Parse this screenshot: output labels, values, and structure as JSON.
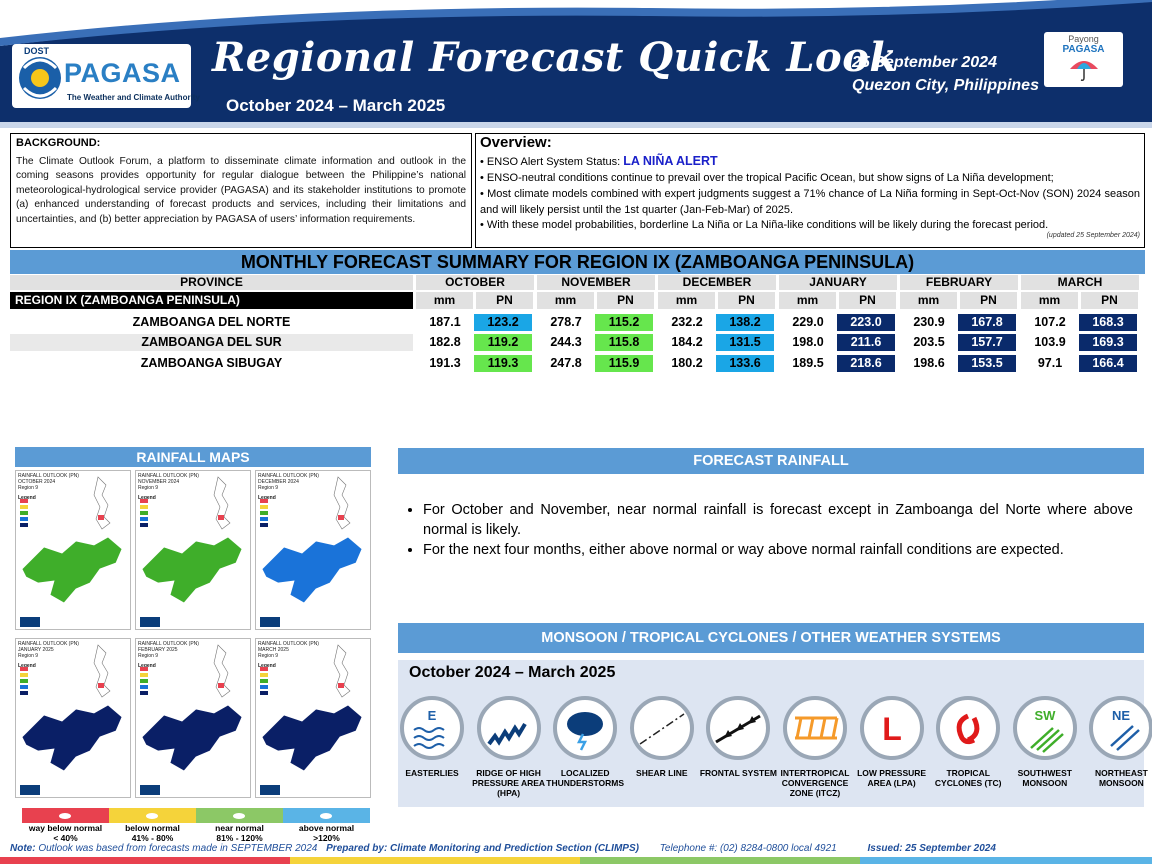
{
  "header": {
    "logo_dost": "DOST",
    "logo_name": "PAGASA",
    "logo_tagline": "The Weather and Climate Authority",
    "title": "Regional Forecast Quick Look",
    "period": "October 2024 – March 2025",
    "date": "25 September 2024",
    "place": "Quezon City, Philippines",
    "payong_top": "Payong",
    "payong_name": "PAGASA"
  },
  "background": {
    "title": "BACKGROUND:",
    "text": "The Climate Outlook Forum, a platform to disseminate climate information and outlook in the coming seasons provides opportunity for regular dialogue between the Philippine’s national meteorological-hydrological service provider (PAGASA) and its stakeholder institutions to promote (a) enhanced understanding of forecast products and services, including their limitations and uncertainties, and (b) better appreciation by PAGASA of users’ information requirements."
  },
  "overview": {
    "title": "Overview:",
    "status_label": "• ENSO Alert System Status: ",
    "status_value": "LA NIÑA ALERT",
    "line1": "• ENSO-neutral conditions continue to prevail over the tropical Pacific Ocean, but show signs of La Niña development;",
    "line2": "• Most climate models combined with expert judgments suggest a 71% chance of La Niña forming in Sept-Oct-Nov (SON) 2024 season and will likely persist until the 1st quarter (Jan-Feb-Mar) of 2025.",
    "line3": "• With these model probabilities, borderline La Niña or La Niña-like conditions will be likely during the forecast period.",
    "updated": "(updated 25 September 2024)"
  },
  "table": {
    "title": "MONTHLY FORECAST SUMMARY FOR REGION IX (ZAMBOANGA PENINSULA)",
    "province_header": "PROVINCE",
    "region_label": "REGION IX (ZAMBOANGA PENINSULA)",
    "months": [
      "OCTOBER",
      "NOVEMBER",
      "DECEMBER",
      "JANUARY",
      "FEBRUARY",
      "MARCH"
    ],
    "sub": {
      "mm": "mm",
      "pn": "PN"
    },
    "rows": [
      {
        "name": "ZAMBOANGA DEL NORTE",
        "values": [
          "187.1",
          "123.2",
          "278.7",
          "115.2",
          "232.2",
          "138.2",
          "229.0",
          "223.0",
          "230.9",
          "167.8",
          "107.2",
          "168.3"
        ]
      },
      {
        "name": "ZAMBOANGA DEL SUR",
        "values": [
          "182.8",
          "119.2",
          "244.3",
          "115.8",
          "184.2",
          "131.5",
          "198.0",
          "211.6",
          "203.5",
          "157.7",
          "103.9",
          "169.3"
        ]
      },
      {
        "name": "ZAMBOANGA SIBUGAY",
        "values": [
          "191.3",
          "119.3",
          "247.8",
          "115.9",
          "180.2",
          "133.6",
          "189.5",
          "218.6",
          "198.6",
          "153.5",
          "97.1",
          "166.4"
        ]
      }
    ],
    "colors": {
      "near_normal": "#66e64d",
      "above_normal": "#1aa6e6",
      "way_above": "#0a2a6b"
    }
  },
  "maps": {
    "title": "RAINFALL MAPS",
    "items": [
      {
        "title": "RAINFALL OUTLOOK (PN)",
        "month": "OCTOBER 2024",
        "region": "Region 9",
        "fill": "#3fae2a"
      },
      {
        "title": "RAINFALL OUTLOOK (PN)",
        "month": "NOVEMBER 2024",
        "region": "Region 9",
        "fill": "#3fae2a"
      },
      {
        "title": "RAINFALL OUTLOOK (PN)",
        "month": "DECEMBER 2024",
        "region": "Region 9",
        "fill": "#1a73d9"
      },
      {
        "title": "RAINFALL OUTLOOK (PN)",
        "month": "JANUARY 2025",
        "region": "Region 9",
        "fill": "#0a1f66"
      },
      {
        "title": "RAINFALL OUTLOOK (PN)",
        "month": "FEBRUARY 2025",
        "region": "Region 9",
        "fill": "#0a1f66"
      },
      {
        "title": "RAINFALL OUTLOOK (PN)",
        "month": "MARCH 2025",
        "region": "Region 9",
        "fill": "#0a1f66"
      }
    ],
    "legend_title": "Legend"
  },
  "legend": [
    {
      "label": "way below normal",
      "range": "< 40%",
      "color": "#e8414f"
    },
    {
      "label": "below normal",
      "range": "41% - 80%",
      "color": "#f5d33a"
    },
    {
      "label": "near normal",
      "range": "81% - 120%",
      "color": "#8cc866"
    },
    {
      "label": "above normal",
      "range": ">120%",
      "color": "#5ab4e6"
    }
  ],
  "forecast_rainfall": {
    "title": "FORECAST RAINFALL",
    "bullets": [
      "For October and November, near normal rainfall is forecast except in Zamboanga del Norte where above normal is likely.",
      "For the next four months, either above normal or way above normal rainfall conditions are expected."
    ]
  },
  "monsoon": {
    "title": "MONSOON / TROPICAL CYCLONES / OTHER WEATHER SYSTEMS",
    "period": "October 2024 – March 2025",
    "systems": [
      {
        "icon": "easterlies-icon",
        "glyph": "E",
        "label": "EASTERLIES"
      },
      {
        "icon": "ridge-icon",
        "glyph": "",
        "label": "RIDGE OF HIGH PRESSURE AREA (HPA)"
      },
      {
        "icon": "thunderstorm-icon",
        "glyph": "",
        "label": "LOCALIZED THUNDERSTORMS"
      },
      {
        "icon": "shear-line-icon",
        "glyph": "",
        "label": "SHEAR LINE"
      },
      {
        "icon": "frontal-system-icon",
        "glyph": "",
        "label": "FRONTAL SYSTEM"
      },
      {
        "icon": "itcz-icon",
        "glyph": "",
        "label": "INTERTROPICAL CONVERGENCE ZONE (ITCZ)"
      },
      {
        "icon": "lpa-icon",
        "glyph": "L",
        "label": "LOW PRESSURE AREA (LPA)"
      },
      {
        "icon": "tropical-cyclone-icon",
        "glyph": "",
        "label": "TROPICAL CYCLONES (TC)"
      },
      {
        "icon": "southwest-monsoon-icon",
        "glyph": "SW",
        "label": "SOUTHWEST MONSOON"
      },
      {
        "icon": "northeast-monsoon-icon",
        "glyph": "NE",
        "label": "NORTHEAST MONSOON"
      }
    ]
  },
  "footer": {
    "note_label": "Note:",
    "note": " Outlook was based from forecasts made in SEPTEMBER 2024",
    "prepared": "Prepared by: Climate Monitoring and Prediction Section (CLIMPS)",
    "phone": "Telephone #: (02) 8284-0800 local 4921",
    "issued": "Issued: 25 September 2024"
  }
}
